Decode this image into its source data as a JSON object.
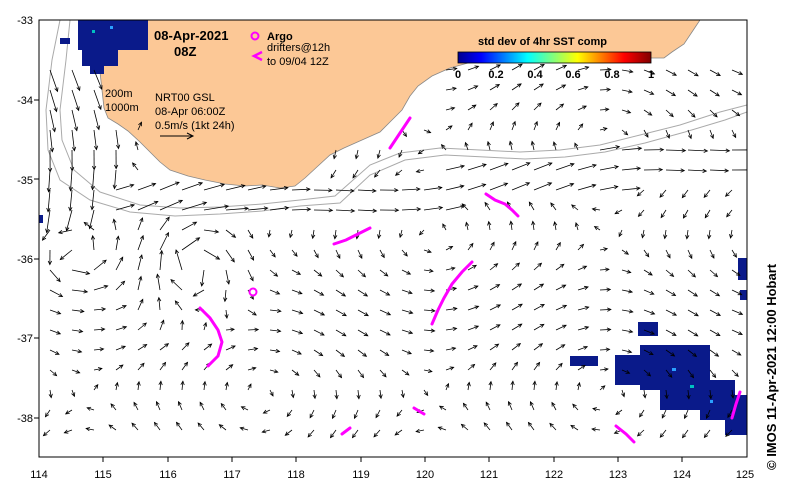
{
  "map": {
    "title_date": "08-Apr-2021",
    "title_time": "08Z",
    "legend": {
      "argo_label": "Argo",
      "drifters_label": "drifters@12h",
      "drifters_period": "to 09/04 12Z"
    },
    "isobaths": [
      "200m",
      "1000m"
    ],
    "product_info": [
      "NRT00 GSL",
      "08-Apr 06:00Z",
      "0.5m/s (1kt 24h)"
    ],
    "colorbar": {
      "title": "std dev of 4hr SST comp",
      "ticks": [
        "0",
        "0.2",
        "0.4",
        "0.6",
        "0.8",
        "1"
      ]
    },
    "x_ticks": [
      "114",
      "115",
      "116",
      "117",
      "118",
      "119",
      "120",
      "121",
      "122",
      "123",
      "124",
      "125"
    ],
    "y_ticks": [
      "-33",
      "-34",
      "-35",
      "-36",
      "-37",
      "-38"
    ],
    "credit": "© IMOS 11-Apr-2021 12:00 Hobart",
    "colors": {
      "land": "#fcc896",
      "ocean": "#ffffff",
      "argo": "#ff00ff",
      "drifter": "#ff00ff",
      "sst_cloud": "#0a1a8a"
    }
  }
}
